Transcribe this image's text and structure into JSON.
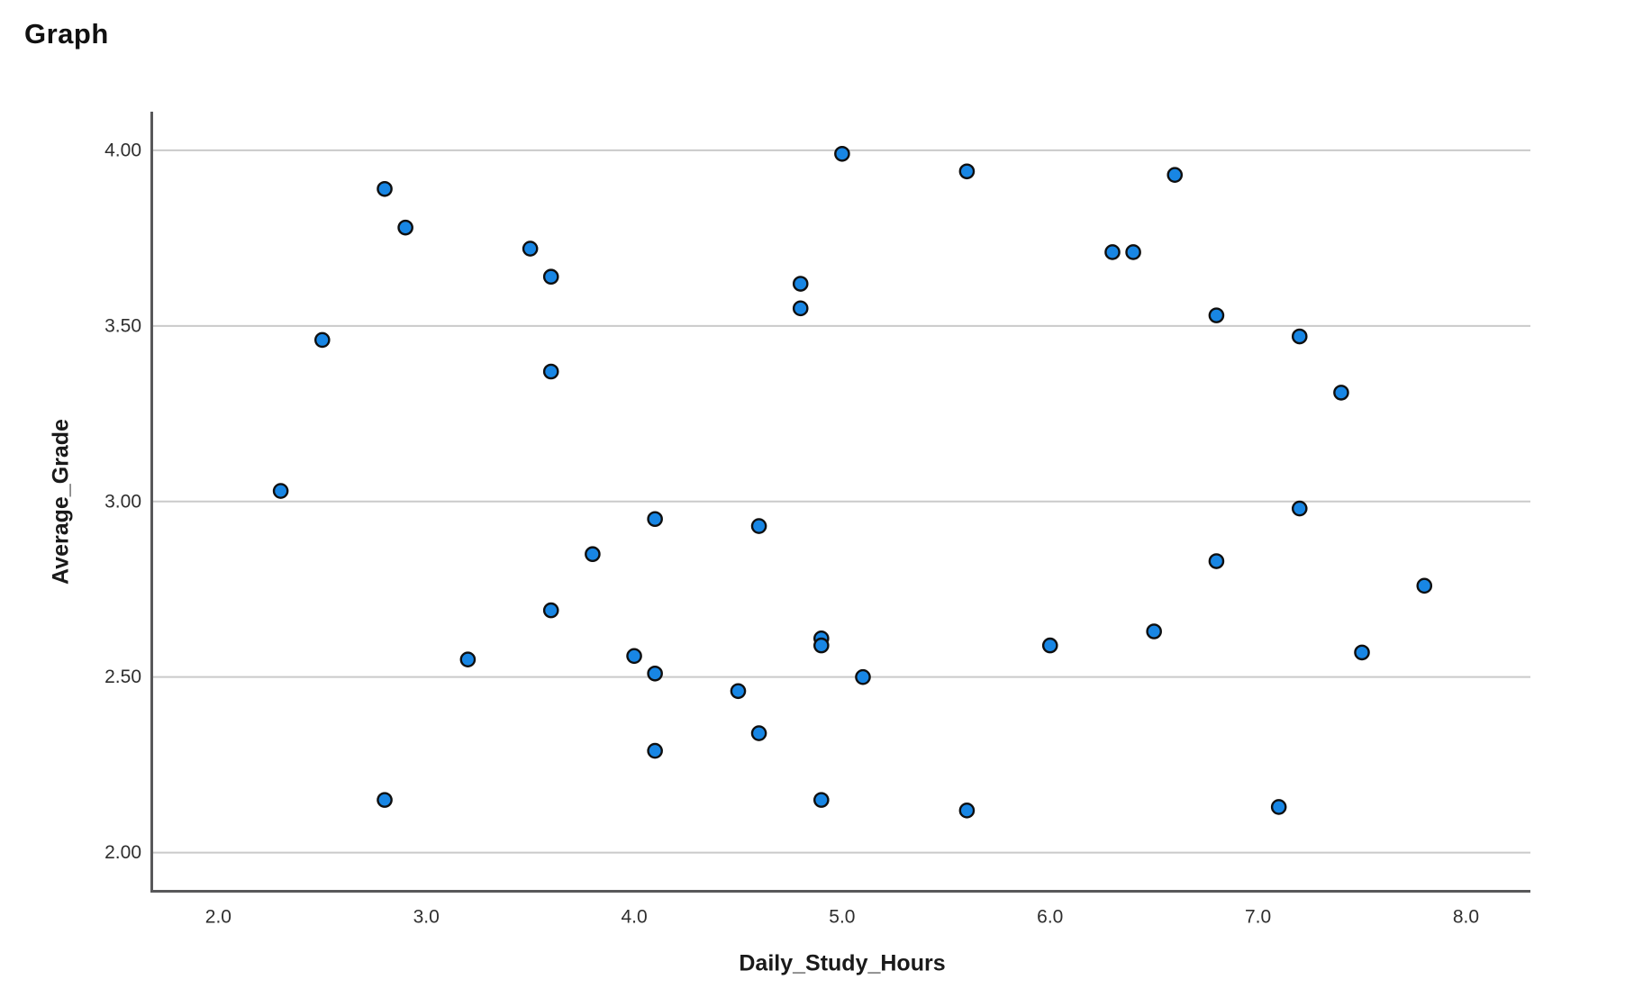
{
  "page": {
    "title": "Graph"
  },
  "chart_data": {
    "type": "scatter",
    "title": "Graph",
    "xlabel": "Daily_Study_Hours",
    "ylabel": "Average_Grade",
    "x_tick_labels": [
      "2.0",
      "3.0",
      "4.0",
      "5.0",
      "6.0",
      "7.0",
      "8.0"
    ],
    "x_tick_values": [
      2.0,
      3.0,
      4.0,
      5.0,
      6.0,
      7.0,
      8.0
    ],
    "y_tick_labels": [
      "4.00",
      "3.50",
      "3.00",
      "2.50",
      "2.00"
    ],
    "y_tick_values": [
      4.0,
      3.5,
      3.0,
      2.5,
      2.0
    ],
    "xlim": [
      1.68,
      8.31
    ],
    "ylim": [
      1.89,
      4.11
    ],
    "grid": "horizontal-only",
    "legend_position": "none",
    "points": [
      [
        2.3,
        3.03
      ],
      [
        2.5,
        3.46
      ],
      [
        2.8,
        3.89
      ],
      [
        2.8,
        2.15
      ],
      [
        2.9,
        3.78
      ],
      [
        3.2,
        2.55
      ],
      [
        3.5,
        3.72
      ],
      [
        3.6,
        3.64
      ],
      [
        3.6,
        3.37
      ],
      [
        3.6,
        2.69
      ],
      [
        3.8,
        2.85
      ],
      [
        4.0,
        2.56
      ],
      [
        4.1,
        2.95
      ],
      [
        4.1,
        2.51
      ],
      [
        4.1,
        2.29
      ],
      [
        4.5,
        2.46
      ],
      [
        4.6,
        2.93
      ],
      [
        4.6,
        2.34
      ],
      [
        4.8,
        3.62
      ],
      [
        4.8,
        3.55
      ],
      [
        4.9,
        2.61
      ],
      [
        4.9,
        2.59
      ],
      [
        4.9,
        2.15
      ],
      [
        5.0,
        3.99
      ],
      [
        5.1,
        2.5
      ],
      [
        5.6,
        3.94
      ],
      [
        5.6,
        2.12
      ],
      [
        6.0,
        2.59
      ],
      [
        6.3,
        3.71
      ],
      [
        6.4,
        3.71
      ],
      [
        6.5,
        2.63
      ],
      [
        6.6,
        3.93
      ],
      [
        6.8,
        3.53
      ],
      [
        6.8,
        2.83
      ],
      [
        7.1,
        2.13
      ],
      [
        7.2,
        3.47
      ],
      [
        7.2,
        2.98
      ],
      [
        7.4,
        3.31
      ],
      [
        7.5,
        2.57
      ],
      [
        7.8,
        2.76
      ]
    ]
  },
  "style": {
    "point_fill": "#1886e4",
    "point_border": "#0f0f0f",
    "grid_color": "#cacaca",
    "axis_color": "#58585a",
    "tick_label_color": "#2e2e2e",
    "text_color": "#111111",
    "background": "#ffffff"
  }
}
